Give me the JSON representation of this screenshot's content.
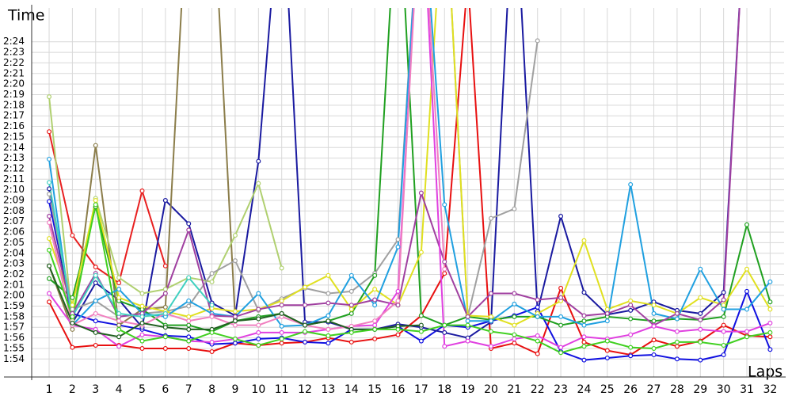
{
  "chart_data": {
    "type": "line",
    "ylabel": "Time",
    "xlabel": "Laps",
    "x": [
      1,
      2,
      3,
      4,
      5,
      6,
      7,
      8,
      9,
      10,
      11,
      12,
      13,
      14,
      15,
      16,
      17,
      18,
      19,
      20,
      21,
      22,
      23,
      24,
      25,
      26,
      27,
      28,
      29,
      30,
      31,
      32
    ],
    "xlim": [
      0.25,
      32.6
    ],
    "xticks": [
      1,
      2,
      3,
      4,
      5,
      6,
      7,
      8,
      9,
      10,
      11,
      12,
      13,
      14,
      15,
      16,
      17,
      18,
      19,
      20,
      21,
      22,
      23,
      24,
      25,
      26,
      27,
      28,
      29,
      30,
      31,
      32
    ],
    "ylim": [
      112.3,
      147.2
    ],
    "yticks": [
      {
        "value": 114,
        "label": "1:54"
      },
      {
        "value": 115,
        "label": "1:55"
      },
      {
        "value": 116,
        "label": "1:56"
      },
      {
        "value": 117,
        "label": "1:57"
      },
      {
        "value": 118,
        "label": "1:58"
      },
      {
        "value": 119,
        "label": "1:59"
      },
      {
        "value": 120,
        "label": "2:00"
      },
      {
        "value": 121,
        "label": "2:01"
      },
      {
        "value": 122,
        "label": "2:02"
      },
      {
        "value": 123,
        "label": "2:03"
      },
      {
        "value": 124,
        "label": "2:04"
      },
      {
        "value": 125,
        "label": "2:05"
      },
      {
        "value": 126,
        "label": "2:06"
      },
      {
        "value": 127,
        "label": "2:07"
      },
      {
        "value": 128,
        "label": "2:08"
      },
      {
        "value": 129,
        "label": "2:09"
      },
      {
        "value": 130,
        "label": "2:10"
      },
      {
        "value": 131,
        "label": "2:11"
      },
      {
        "value": 132,
        "label": "2:12"
      },
      {
        "value": 133,
        "label": "2:13"
      },
      {
        "value": 134,
        "label": "2:14"
      },
      {
        "value": 135,
        "label": "2:15"
      },
      {
        "value": 136,
        "label": "2:16"
      },
      {
        "value": 137,
        "label": "2:17"
      },
      {
        "value": 138,
        "label": "2:18"
      },
      {
        "value": 139,
        "label": "2:19"
      },
      {
        "value": 140,
        "label": "2:20"
      },
      {
        "value": 141,
        "label": "2:21"
      },
      {
        "value": 142,
        "label": "2:22"
      },
      {
        "value": 143,
        "label": "2:23"
      },
      {
        "value": 144,
        "label": "2:24"
      }
    ],
    "grid": true,
    "series": [
      {
        "color": "#e82020",
        "values": [
          135.5,
          125.7,
          122.7,
          121.2,
          129.9,
          122.8,
          null,
          null,
          null,
          null,
          null,
          null,
          null,
          null,
          null,
          null,
          null,
          null,
          null,
          null,
          null,
          null,
          null,
          null,
          null,
          null,
          null,
          null,
          null,
          null,
          null,
          null
        ]
      },
      {
        "color": "#e81010",
        "values": [
          119.4,
          115.1,
          115.3,
          115.3,
          115.0,
          115.0,
          115.0,
          114.7,
          115.5,
          115.3,
          115.5,
          115.6,
          116.0,
          115.6,
          115.9,
          116.3,
          118.1,
          122.1,
          150,
          115.0,
          115.5,
          114.5,
          120.7,
          115.6,
          114.8,
          114.4,
          115.8,
          115.2,
          115.7,
          117.2,
          116.2,
          116.1
        ]
      },
      {
        "color": "#1010e0",
        "values": [
          128.9,
          118.3,
          117.6,
          117.2,
          116.8,
          116.2,
          116.1,
          115.4,
          115.5,
          115.9,
          116.0,
          115.6,
          115.5,
          116.8,
          116.8,
          117.1,
          115.7,
          117.2,
          117.0,
          117.6,
          118.1,
          118.9,
          114.7,
          113.9,
          114.1,
          114.3,
          114.4,
          114.0,
          113.9,
          114.4,
          120.4,
          114.9
        ]
      },
      {
        "color": "#1a1aa0",
        "values": [
          130.1,
          117.4,
          121.2,
          119.6,
          117.0,
          129.0,
          126.8,
          119.3,
          118.1,
          132.7,
          160,
          117.5,
          117.5,
          116.8,
          116.8,
          117.3,
          117.0,
          116.5,
          116.0,
          117.5,
          160,
          118.5,
          127.5,
          120.3,
          118.2,
          118.6,
          119.4,
          118.6,
          118.3,
          120.3,
          160,
          null
        ]
      },
      {
        "color": "#8b7d4a",
        "values": [
          122.8,
          116.8,
          134.2,
          117.2,
          118.7,
          118.9,
          160,
          160,
          117.8,
          null,
          null,
          null,
          null,
          null,
          null,
          null,
          null,
          null,
          null,
          null,
          null,
          null,
          null,
          null,
          null,
          null,
          null,
          null,
          null,
          null,
          null,
          null
        ]
      },
      {
        "color": "#b0d070",
        "values": [
          138.8,
          117.6,
          129.2,
          121.7,
          120.2,
          120.6,
          121.7,
          121.3,
          125.7,
          130.6,
          122.6,
          null,
          null,
          null,
          null,
          null,
          null,
          null,
          null,
          null,
          null,
          null,
          null,
          null,
          null,
          null,
          null,
          null,
          null,
          null,
          null,
          null
        ]
      },
      {
        "color": "#a0a0a0",
        "values": [
          129.6,
          118.7,
          119.5,
          118.0,
          118.3,
          118.5,
          119.0,
          122.1,
          123.3,
          118.6,
          119.7,
          120.7,
          120.2,
          120.4,
          122.1,
          125.3,
          160,
          160,
          118.0,
          127.3,
          128.2,
          144.1,
          null,
          null,
          null,
          null,
          null,
          null,
          null,
          null,
          null,
          null
        ]
      },
      {
        "color": "#20a020",
        "values": [
          121.6,
          119.8,
          128.4,
          119.5,
          118.7,
          117.2,
          117.2,
          116.6,
          117.6,
          118.0,
          118.3,
          117.2,
          117.6,
          118.3,
          121.9,
          160,
          118.1,
          117.2,
          118.0,
          117.7,
          118.0,
          118.0,
          117.2,
          117.6,
          118.0,
          117.8,
          117.6,
          117.8,
          117.7,
          118.0,
          126.7,
          119.4
        ]
      },
      {
        "color": "#e0e020",
        "values": [
          125.4,
          119.1,
          129.0,
          119.8,
          119.0,
          118.5,
          118.0,
          118.8,
          118.5,
          118.7,
          119.5,
          120.8,
          121.9,
          118.7,
          120.6,
          119.1,
          124.1,
          160,
          118.1,
          118.0,
          117.2,
          118.3,
          119.5,
          125.2,
          118.7,
          119.5,
          119.1,
          118.3,
          119.8,
          119.1,
          122.5,
          118.7
        ]
      },
      {
        "color": "#20a0e0",
        "values": [
          132.9,
          117.2,
          119.5,
          120.6,
          118.3,
          118.0,
          119.5,
          118.3,
          118.0,
          120.2,
          117.1,
          117.2,
          118.1,
          121.9,
          119.1,
          124.6,
          160,
          128.6,
          117.6,
          117.6,
          119.2,
          118.0,
          118.0,
          117.2,
          117.6,
          130.5,
          118.3,
          117.8,
          122.5,
          118.7,
          118.7,
          121.3
        ]
      },
      {
        "color": "#a040a0",
        "values": [
          127.5,
          118.3,
          122.1,
          118.0,
          118.3,
          120.2,
          126.2,
          118.1,
          118.0,
          118.7,
          119.1,
          119.1,
          119.3,
          119.1,
          119.6,
          119.1,
          129.7,
          123.2,
          118.0,
          120.2,
          120.2,
          119.6,
          119.8,
          118.1,
          118.3,
          119.1,
          117.2,
          118.3,
          117.7,
          119.6,
          160,
          null
        ]
      },
      {
        "color": "#e040e0",
        "values": [
          120.2,
          117.2,
          116.8,
          115.2,
          116.3,
          116.1,
          115.7,
          115.6,
          115.9,
          116.5,
          116.5,
          116.5,
          116.8,
          117.1,
          117.2,
          120.4,
          160,
          115.2,
          115.7,
          115.2,
          115.9,
          116.2,
          115.1,
          116.1,
          115.9,
          116.3,
          117.1,
          116.6,
          116.8,
          116.6,
          116.6,
          117.4
        ]
      },
      {
        "color": "#f080c0",
        "values": [
          126.9,
          117.2,
          118.3,
          117.6,
          117.2,
          118.3,
          117.6,
          118.0,
          117.2,
          117.2,
          118.0,
          117.2,
          116.8,
          117.1,
          117.6,
          119.5,
          160,
          122.5,
          null,
          null,
          null,
          null,
          null,
          null,
          null,
          null,
          null,
          null,
          null,
          null,
          null,
          null
        ]
      },
      {
        "color": "#40d0c0",
        "values": [
          130.7,
          118.0,
          121.9,
          118.3,
          118.0,
          118.3,
          121.7,
          119.1,
          null,
          null,
          null,
          null,
          null,
          null,
          null,
          null,
          null,
          null,
          null,
          null,
          null,
          null,
          null,
          null,
          null,
          null,
          null,
          null,
          null,
          null,
          null,
          null
        ]
      },
      {
        "color": "#206020",
        "values": [
          122.8,
          117.4,
          116.5,
          116.1,
          117.4,
          117.0,
          116.8,
          116.8,
          117.6,
          117.8,
          118.3,
          117.2,
          117.6,
          116.8,
          116.8,
          117.1,
          117.2,
          null,
          null,
          null,
          null,
          null,
          null,
          null,
          null,
          null,
          null,
          null,
          null,
          null,
          null,
          null
        ]
      },
      {
        "color": "#40d020",
        "values": [
          124.3,
          118.0,
          128.6,
          116.8,
          115.7,
          116.1,
          115.7,
          116.5,
          115.9,
          115.3,
          115.9,
          116.6,
          116.2,
          116.5,
          116.8,
          116.8,
          116.6,
          117.2,
          117.2,
          116.6,
          116.3,
          115.7,
          114.6,
          115.2,
          115.7,
          115.1,
          115.0,
          115.6,
          115.6,
          115.3,
          116.1,
          116.5
        ]
      }
    ]
  }
}
